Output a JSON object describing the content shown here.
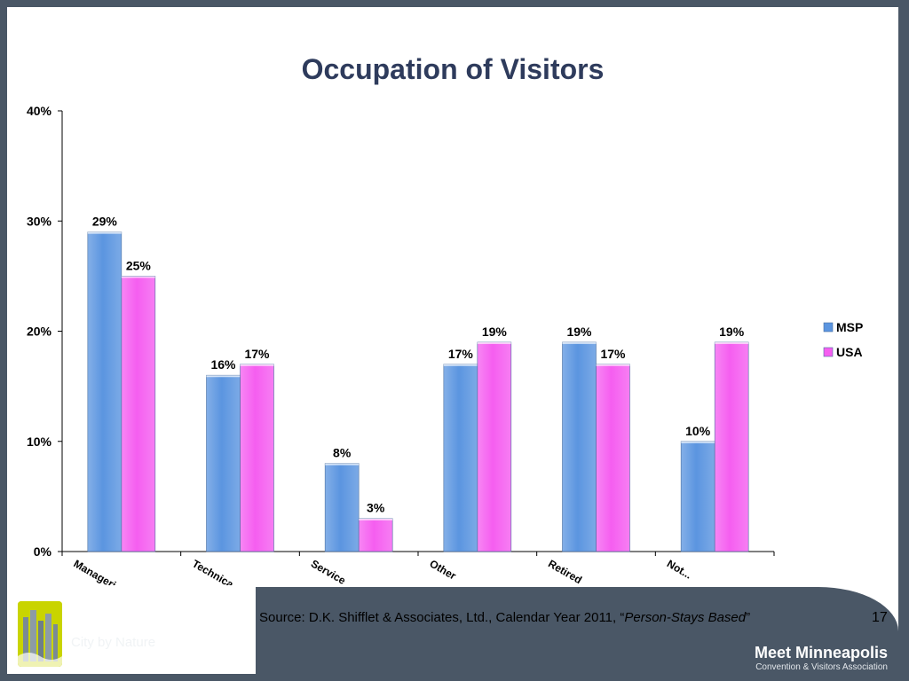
{
  "chart_data": {
    "type": "bar",
    "title": "Occupation of Visitors",
    "categories": [
      "Manageri...",
      "Technica...",
      "Service",
      "Other",
      "Retired",
      "Not..."
    ],
    "series": [
      {
        "name": "MSP",
        "values": [
          29,
          16,
          8,
          17,
          19,
          10
        ],
        "labels": [
          "29%",
          "16%",
          "8%",
          "17%",
          "19%",
          "10%"
        ],
        "color": "#5b95e0"
      },
      {
        "name": "USA",
        "values": [
          25,
          17,
          3,
          19,
          17,
          19
        ],
        "labels": [
          "25%",
          "17%",
          "3%",
          "19%",
          "17%",
          "19%"
        ],
        "color": "#f55ef0"
      }
    ],
    "yticks": [
      "0%",
      "10%",
      "20%",
      "30%",
      "40%"
    ],
    "ylim": [
      0,
      40
    ],
    "grid": false,
    "legend": "right"
  },
  "footer": {
    "logo_name": "Minneapolis",
    "logo_tagline": "City by Nature",
    "source_prefix": "Source: D.K. Shifflet & Associates, Ltd., Calendar Year 2011, “",
    "source_italic": "Person-Stays Based",
    "source_suffix": "”",
    "page_number": "17",
    "org_name": "Meet Minneapolis",
    "org_subtitle": "Convention & Visitors Association"
  },
  "colors": {
    "accent": "#4a5766",
    "logo_green": "#c9d400",
    "title": "#2e3b5c"
  }
}
